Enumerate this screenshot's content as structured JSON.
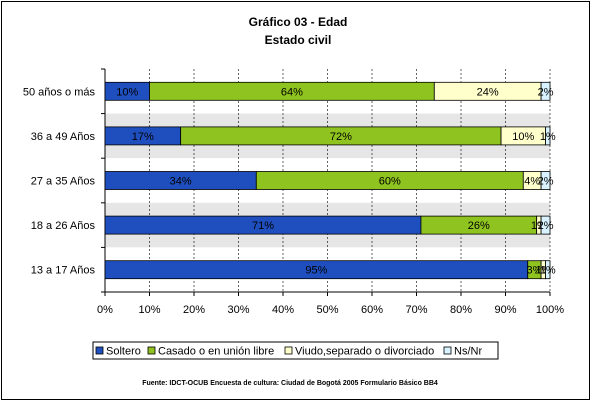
{
  "chart_data": {
    "type": "bar",
    "orientation": "horizontal",
    "stacked": "percent",
    "title": "Gráfico 03 - Edad",
    "subtitle": "Estado civil",
    "categories": [
      "50 años o más",
      "36 a 49 Años",
      "27 a 35 Años",
      "18 a 26 Años",
      "13 a 17 Años"
    ],
    "series": [
      {
        "name": "Soltero",
        "color": "#1f4fbf",
        "values": [
          10,
          17,
          34,
          71,
          95
        ],
        "labels": [
          "10%",
          "17%",
          "34%",
          "71%",
          "95%"
        ]
      },
      {
        "name": "Casado o en unión libre",
        "color": "#8fc31f",
        "values": [
          64,
          72,
          60,
          26,
          3
        ],
        "labels": [
          "64%",
          "72%",
          "60%",
          "26%",
          "3%"
        ]
      },
      {
        "name": "Viudo,separado o divorciado",
        "color": "#ffffcc",
        "values": [
          24,
          10,
          4,
          1,
          1
        ],
        "labels": [
          "24%",
          "10%",
          "4%",
          "1%",
          "1%"
        ]
      },
      {
        "name": "Ns/Nr",
        "color": "#d9f2ff",
        "values": [
          2,
          1,
          2,
          2,
          1
        ],
        "labels": [
          "2%",
          "1%",
          "2%",
          "2%",
          "1%"
        ]
      }
    ],
    "xlim": [
      0,
      100
    ],
    "xticks": [
      "0%",
      "10%",
      "20%",
      "30%",
      "40%",
      "50%",
      "60%",
      "70%",
      "80%",
      "90%",
      "100%"
    ],
    "grid": true,
    "legend": "bottom",
    "source": "Fuente: IDCT-OCUB Encuesta de cultura: Ciudad de Bogotá 2005 Formulario Básico  BB4"
  }
}
